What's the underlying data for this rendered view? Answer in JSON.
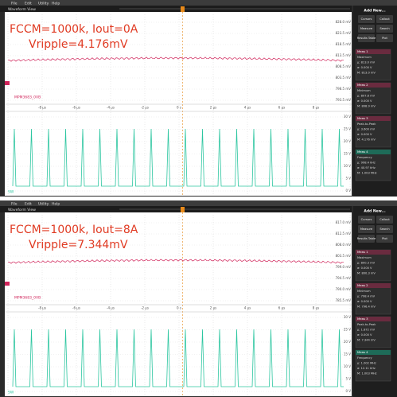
{
  "panels": [
    {
      "menu": [
        "File",
        "Edit",
        "Utility",
        "Help"
      ],
      "view_title": "Waveform View",
      "annotation": [
        "FCCM=1000k, Iout=0A",
        "Vripple=4.176mV"
      ],
      "ch1_label": "MPM3683_0VB",
      "ch2_label": "SW",
      "ch1_ticks": [
        "828.0 mV",
        "823.5 mV",
        "818.5 mV",
        "813.5 mV",
        "808.5 mV",
        "803.5 mV",
        "798.5 mV",
        "793.5 mV"
      ],
      "ch2_ticks": [
        "30 V",
        "25 V",
        "20 V",
        "15 V",
        "10 V",
        "5 V",
        "0 V"
      ],
      "time_ticks": [
        "-8 µs",
        "-6 µs",
        "-4 µs",
        "-2 µs",
        "0 s",
        "2 µs",
        "4 µs",
        "6 µs",
        "8 µs"
      ],
      "sidebar": {
        "add": "Add New...",
        "buttons": [
          "Cursors",
          "Callout",
          "Measure",
          "Search",
          "Results Table",
          "Plot"
        ],
        "measurements": [
          {
            "title": "Meas 1",
            "lines": [
              "Maximum",
              "μ: 813.0 mV",
              "σ: 0.000 V",
              "M: 813.0 mV"
            ]
          },
          {
            "title": "Meas 2",
            "lines": [
              "Minimum",
              "μ: 807.8 mV",
              "σ: 0.000 V",
              "M: 808.9 mV"
            ]
          },
          {
            "title": "Meas 3",
            "lines": [
              "Peak-to-Peak",
              "μ: 3.600 mV",
              "σ: 0.000 V",
              "M: 4.176 mV"
            ]
          },
          {
            "title": "Meas 4",
            "lines": [
              "Frequency",
              "μ: 998.4 kHz",
              "σ: 40.97 kHz",
              "M: 1.003 MHz"
            ]
          }
        ]
      }
    },
    {
      "menu": [
        "File",
        "Edit",
        "Utility",
        "Help"
      ],
      "view_title": "Waveform View",
      "annotation": [
        "FCCM=1000k, Iout=8A",
        "Vripple=7.344mV"
      ],
      "ch1_label": "MPM3683_0VB",
      "ch2_label": "SW",
      "ch1_ticks": [
        "817.0 mV",
        "812.5 mV",
        "808.0 mV",
        "803.5 mV",
        "799.0 mV",
        "794.5 mV",
        "790.0 mV",
        "785.5 mV"
      ],
      "ch2_ticks": [
        "30 V",
        "25 V",
        "20 V",
        "15 V",
        "10 V",
        "5 V",
        "0 V"
      ],
      "time_ticks": [
        "-8 µs",
        "-6 µs",
        "-4 µs",
        "-2 µs",
        "0 s",
        "2 µs",
        "4 µs",
        "6 µs",
        "8 µs"
      ],
      "sidebar": {
        "add": "Add New...",
        "buttons": [
          "Cursors",
          "Callout",
          "Measure",
          "Search",
          "Results Table",
          "Plot"
        ],
        "measurements": [
          {
            "title": "Meas 1",
            "lines": [
              "Maximum",
              "μ: 800.3 mV",
              "σ: 0.000 V",
              "M: 800.3 mV"
            ]
          },
          {
            "title": "Meas 2",
            "lines": [
              "Minimum",
              "μ: 798.4 mV",
              "σ: 0.000 V",
              "M: 796.4 mV"
            ]
          },
          {
            "title": "Meas 3",
            "lines": [
              "Peak-to-Peak",
              "μ: 1.872 mV",
              "σ: 0.000 V",
              "M: 7.344 mV"
            ]
          },
          {
            "title": "Meas 4",
            "lines": [
              "Frequency",
              "μ: 1.002 MHz",
              "σ: 12.11 kHz",
              "M: 1.003 MHz"
            ]
          }
        ]
      }
    }
  ]
}
